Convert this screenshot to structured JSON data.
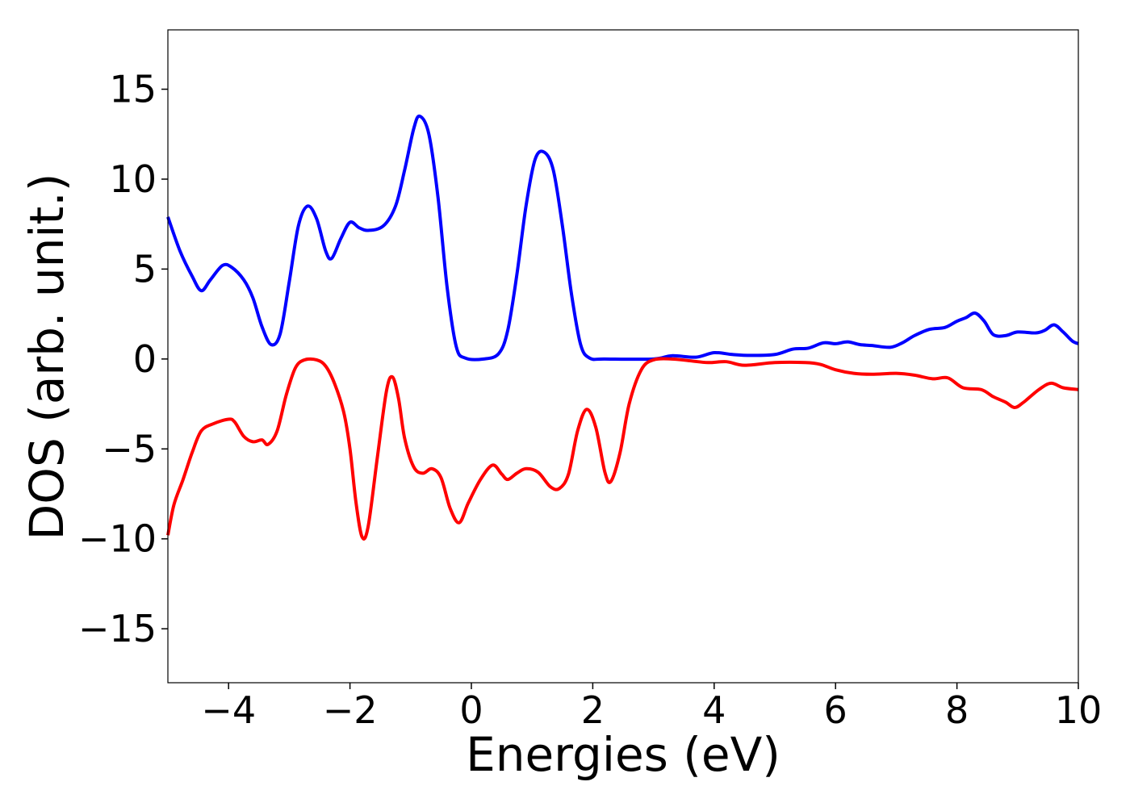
{
  "chart_data": {
    "type": "line",
    "title": "",
    "xlabel": "Energies (eV)",
    "ylabel": "DOS (arb. unit.)",
    "xlim": [
      -5,
      10
    ],
    "ylim": [
      -18,
      18.3
    ],
    "xticks": [
      -4,
      -2,
      0,
      2,
      4,
      6,
      8,
      10
    ],
    "yticks": [
      -15,
      -10,
      -5,
      0,
      5,
      10,
      15
    ],
    "xtick_labels": [
      "−4",
      "−2",
      "0",
      "2",
      "4",
      "6",
      "8",
      "10"
    ],
    "ytick_labels": [
      "−15",
      "−10",
      "−5",
      "0",
      "5",
      "10",
      "15"
    ],
    "grid": false,
    "legend": "none",
    "series": [
      {
        "color": "#0000ff",
        "points": [
          [
            -5.0,
            7.9
          ],
          [
            -4.8,
            6.0
          ],
          [
            -4.6,
            4.6
          ],
          [
            -4.45,
            3.8
          ],
          [
            -4.3,
            4.4
          ],
          [
            -4.1,
            5.2
          ],
          [
            -3.95,
            5.1
          ],
          [
            -3.75,
            4.4
          ],
          [
            -3.6,
            3.4
          ],
          [
            -3.45,
            1.8
          ],
          [
            -3.3,
            0.8
          ],
          [
            -3.15,
            1.4
          ],
          [
            -3.0,
            4.3
          ],
          [
            -2.85,
            7.4
          ],
          [
            -2.7,
            8.5
          ],
          [
            -2.55,
            7.8
          ],
          [
            -2.4,
            6.0
          ],
          [
            -2.3,
            5.6
          ],
          [
            -2.15,
            6.7
          ],
          [
            -2.0,
            7.6
          ],
          [
            -1.85,
            7.3
          ],
          [
            -1.7,
            7.15
          ],
          [
            -1.45,
            7.4
          ],
          [
            -1.25,
            8.5
          ],
          [
            -1.1,
            10.5
          ],
          [
            -0.95,
            12.8
          ],
          [
            -0.85,
            13.5
          ],
          [
            -0.7,
            12.5
          ],
          [
            -0.55,
            9.0
          ],
          [
            -0.4,
            4.0
          ],
          [
            -0.25,
            0.7
          ],
          [
            -0.1,
            0.05
          ],
          [
            0.2,
            0.0
          ],
          [
            0.45,
            0.3
          ],
          [
            0.6,
            1.6
          ],
          [
            0.75,
            4.7
          ],
          [
            0.9,
            8.5
          ],
          [
            1.05,
            11.1
          ],
          [
            1.2,
            11.5
          ],
          [
            1.35,
            10.5
          ],
          [
            1.5,
            7.4
          ],
          [
            1.65,
            3.6
          ],
          [
            1.8,
            0.8
          ],
          [
            1.95,
            0.05
          ],
          [
            2.2,
            0.0
          ],
          [
            3.0,
            0.0
          ],
          [
            3.3,
            0.18
          ],
          [
            3.7,
            0.1
          ],
          [
            4.0,
            0.35
          ],
          [
            4.3,
            0.25
          ],
          [
            4.6,
            0.2
          ],
          [
            5.0,
            0.25
          ],
          [
            5.3,
            0.55
          ],
          [
            5.55,
            0.6
          ],
          [
            5.8,
            0.9
          ],
          [
            6.0,
            0.85
          ],
          [
            6.2,
            0.95
          ],
          [
            6.4,
            0.8
          ],
          [
            6.6,
            0.75
          ],
          [
            6.9,
            0.65
          ],
          [
            7.1,
            0.9
          ],
          [
            7.3,
            1.3
          ],
          [
            7.55,
            1.65
          ],
          [
            7.8,
            1.75
          ],
          [
            8.0,
            2.1
          ],
          [
            8.15,
            2.3
          ],
          [
            8.3,
            2.55
          ],
          [
            8.45,
            2.1
          ],
          [
            8.6,
            1.35
          ],
          [
            8.8,
            1.3
          ],
          [
            9.0,
            1.5
          ],
          [
            9.3,
            1.45
          ],
          [
            9.45,
            1.6
          ],
          [
            9.6,
            1.9
          ],
          [
            9.75,
            1.5
          ],
          [
            9.9,
            1.0
          ],
          [
            10.0,
            0.85
          ]
        ]
      },
      {
        "color": "#ff0000",
        "points": [
          [
            -5.0,
            -9.8
          ],
          [
            -4.9,
            -8.1
          ],
          [
            -4.75,
            -6.7
          ],
          [
            -4.6,
            -5.2
          ],
          [
            -4.45,
            -4.0
          ],
          [
            -4.25,
            -3.6
          ],
          [
            -4.0,
            -3.35
          ],
          [
            -3.9,
            -3.5
          ],
          [
            -3.75,
            -4.3
          ],
          [
            -3.6,
            -4.6
          ],
          [
            -3.45,
            -4.5
          ],
          [
            -3.35,
            -4.75
          ],
          [
            -3.2,
            -4.0
          ],
          [
            -3.05,
            -2.0
          ],
          [
            -2.9,
            -0.5
          ],
          [
            -2.75,
            -0.05
          ],
          [
            -2.55,
            -0.05
          ],
          [
            -2.4,
            -0.4
          ],
          [
            -2.25,
            -1.4
          ],
          [
            -2.1,
            -3.0
          ],
          [
            -2.0,
            -5.0
          ],
          [
            -1.9,
            -8.0
          ],
          [
            -1.8,
            -9.9
          ],
          [
            -1.7,
            -9.3
          ],
          [
            -1.55,
            -5.5
          ],
          [
            -1.4,
            -1.8
          ],
          [
            -1.3,
            -1.0
          ],
          [
            -1.2,
            -2.2
          ],
          [
            -1.1,
            -4.4
          ],
          [
            -0.95,
            -6.0
          ],
          [
            -0.8,
            -6.35
          ],
          [
            -0.65,
            -6.1
          ],
          [
            -0.5,
            -6.6
          ],
          [
            -0.35,
            -8.3
          ],
          [
            -0.2,
            -9.1
          ],
          [
            -0.05,
            -8.0
          ],
          [
            0.15,
            -6.7
          ],
          [
            0.35,
            -5.9
          ],
          [
            0.5,
            -6.4
          ],
          [
            0.6,
            -6.7
          ],
          [
            0.75,
            -6.35
          ],
          [
            0.9,
            -6.1
          ],
          [
            1.1,
            -6.3
          ],
          [
            1.3,
            -7.1
          ],
          [
            1.45,
            -7.2
          ],
          [
            1.6,
            -6.4
          ],
          [
            1.75,
            -4.0
          ],
          [
            1.9,
            -2.8
          ],
          [
            2.05,
            -3.8
          ],
          [
            2.2,
            -6.3
          ],
          [
            2.3,
            -6.8
          ],
          [
            2.45,
            -5.2
          ],
          [
            2.6,
            -2.5
          ],
          [
            2.8,
            -0.6
          ],
          [
            3.0,
            -0.05
          ],
          [
            3.3,
            0.0
          ],
          [
            3.6,
            -0.1
          ],
          [
            3.9,
            -0.2
          ],
          [
            4.2,
            -0.15
          ],
          [
            4.5,
            -0.35
          ],
          [
            5.0,
            -0.2
          ],
          [
            5.5,
            -0.2
          ],
          [
            5.75,
            -0.3
          ],
          [
            6.0,
            -0.6
          ],
          [
            6.3,
            -0.8
          ],
          [
            6.6,
            -0.85
          ],
          [
            7.0,
            -0.8
          ],
          [
            7.3,
            -0.9
          ],
          [
            7.6,
            -1.1
          ],
          [
            7.85,
            -1.05
          ],
          [
            8.1,
            -1.6
          ],
          [
            8.4,
            -1.7
          ],
          [
            8.6,
            -2.1
          ],
          [
            8.8,
            -2.4
          ],
          [
            8.95,
            -2.7
          ],
          [
            9.1,
            -2.4
          ],
          [
            9.35,
            -1.7
          ],
          [
            9.55,
            -1.35
          ],
          [
            9.75,
            -1.6
          ],
          [
            10.0,
            -1.7
          ]
        ]
      }
    ]
  }
}
